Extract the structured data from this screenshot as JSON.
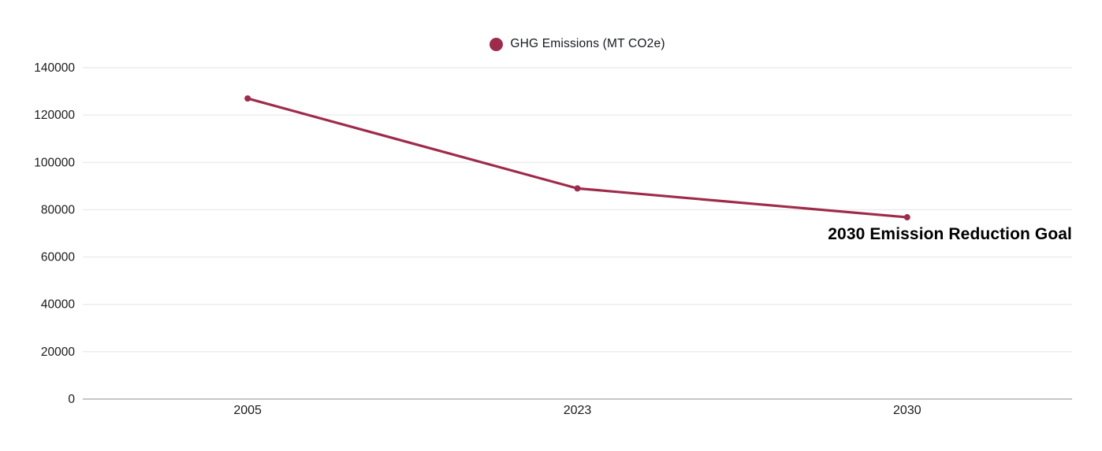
{
  "colors": {
    "series": "#9e2b4b",
    "grid": "#ebebeb",
    "axis": "#c6c6c6",
    "tick_text": "#1a1a1a",
    "annotation_text": "#000000",
    "background": "#ffffff"
  },
  "chart_data": {
    "type": "line",
    "categories": [
      "2005",
      "2023",
      "2030"
    ],
    "series": [
      {
        "name": "GHG Emissions (MT CO2e)",
        "values": [
          127000,
          89000,
          76800
        ]
      }
    ],
    "title": "",
    "xlabel": "",
    "ylabel": "",
    "ylim": [
      0,
      140000
    ],
    "ytick_step": 20000,
    "ytick_labels": [
      "0",
      "20000",
      "40000",
      "60000",
      "80000",
      "100000",
      "120000",
      "140000"
    ],
    "grid": true,
    "legend_position": "top-center",
    "markers": true,
    "annotations": [
      {
        "text": "2030 Emission Reduction Goal",
        "anchor_category": "2030",
        "position": "below-right"
      }
    ]
  }
}
